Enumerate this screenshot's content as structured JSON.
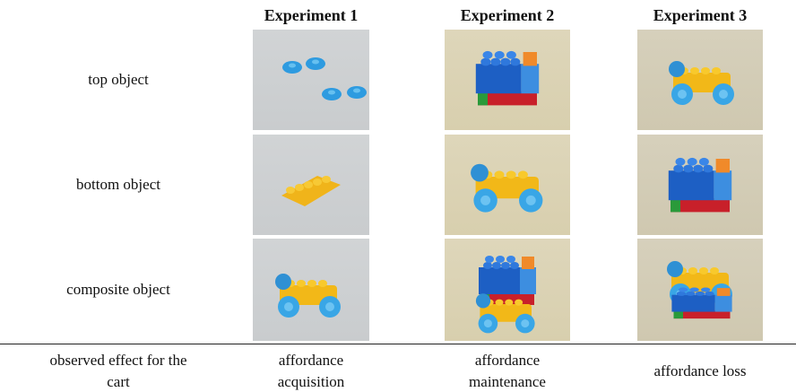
{
  "table": {
    "columns": [
      "Experiment 1",
      "Experiment 2",
      "Experiment 3"
    ],
    "rows": [
      {
        "label": "top object"
      },
      {
        "label": "bottom object"
      },
      {
        "label": "composite object"
      }
    ],
    "footer": {
      "label": [
        "observed effect for the",
        "cart"
      ],
      "cells": [
        [
          "affordance",
          "acquisition"
        ],
        [
          "affordance",
          "maintenance"
        ],
        [
          "affordance loss"
        ]
      ]
    }
  }
}
